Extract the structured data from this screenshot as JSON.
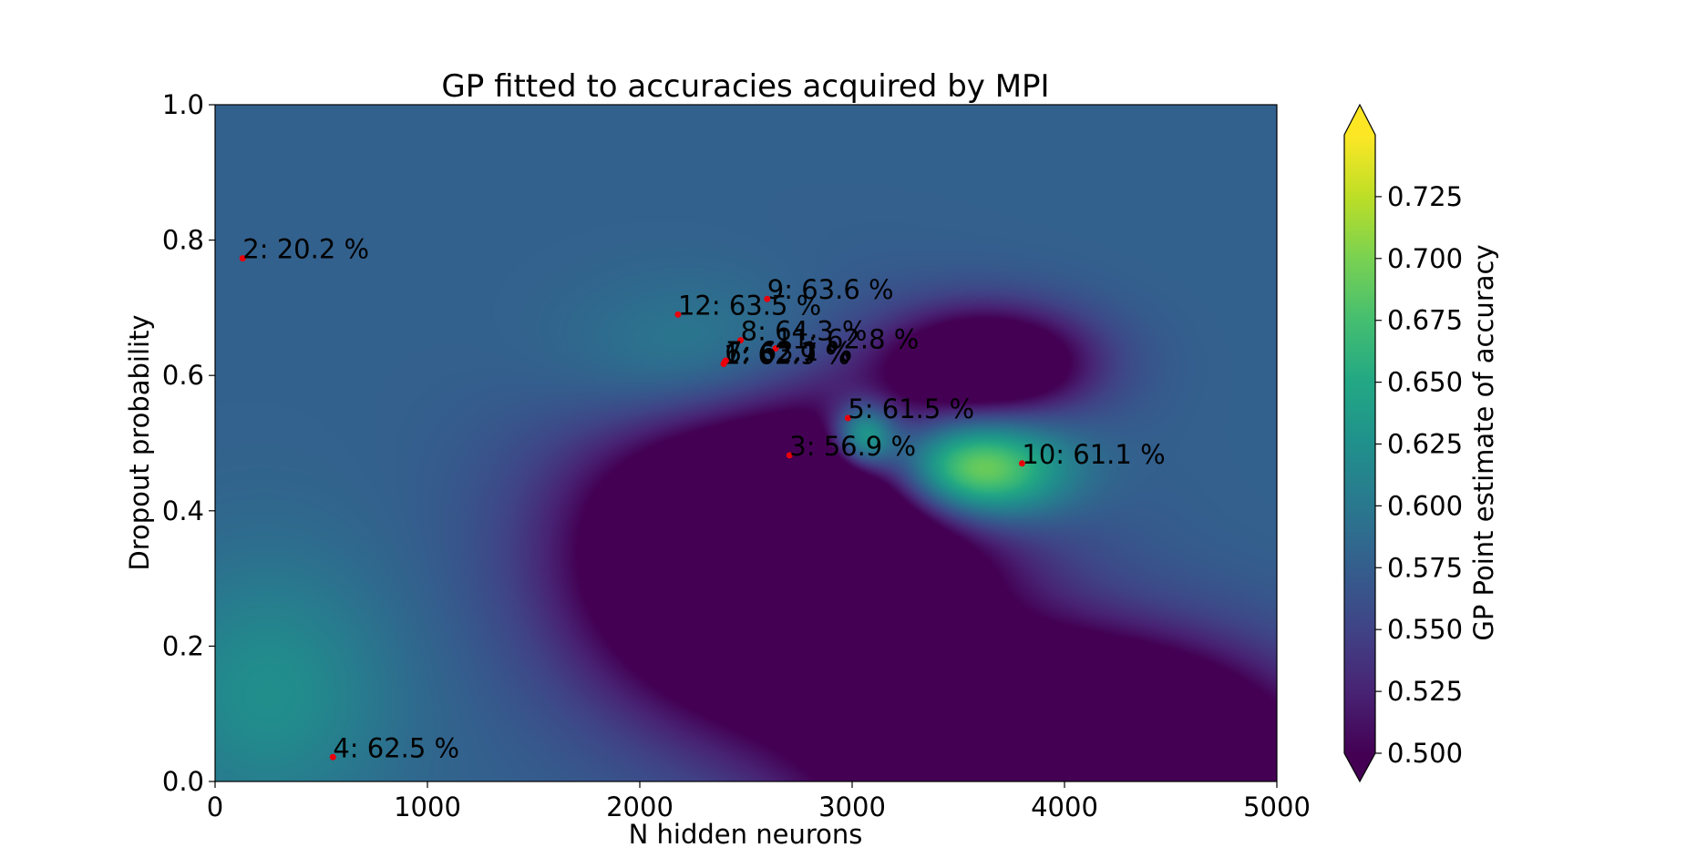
{
  "chart_data": {
    "type": "heatmap",
    "title": "GP fitted to accuracies acquired by MPI",
    "xlabel": "N hidden neurons",
    "ylabel": "Dropout probability",
    "xlim": [
      0,
      5000
    ],
    "ylim": [
      0.0,
      1.0
    ],
    "x_ticks": [
      0,
      1000,
      2000,
      3000,
      4000,
      5000
    ],
    "x_tick_labels": [
      "0",
      "1000",
      "2000",
      "3000",
      "4000",
      "5000"
    ],
    "y_ticks": [
      0.0,
      0.2,
      0.4,
      0.6,
      0.8,
      1.0
    ],
    "y_tick_labels": [
      "0.0",
      "0.2",
      "0.4",
      "0.6",
      "0.8",
      "1.0"
    ],
    "colormap": "viridis",
    "colorbar": {
      "label": "GP Point estimate of accuracy",
      "min": 0.5,
      "max": 0.75,
      "extend": "both",
      "ticks": [
        0.5,
        0.525,
        0.55,
        0.575,
        0.6,
        0.625,
        0.65,
        0.675,
        0.7,
        0.725
      ],
      "tick_labels": [
        "0.500",
        "0.525",
        "0.550",
        "0.575",
        "0.600",
        "0.625",
        "0.650",
        "0.675",
        "0.700",
        "0.725"
      ]
    },
    "surface": {
      "baseline": 0.578,
      "components": [
        {
          "cx": 2350,
          "cy": 0.6,
          "sx": 450,
          "sy": 0.09,
          "amp": 0.06
        },
        {
          "cx": 3550,
          "cy": 0.46,
          "sx": 300,
          "sy": 0.055,
          "amp": 0.185
        },
        {
          "cx": 3050,
          "cy": 0.51,
          "sx": 110,
          "sy": 0.035,
          "amp": 0.14
        },
        {
          "cx": 2680,
          "cy": 0.34,
          "sx": 620,
          "sy": 0.16,
          "amp": -0.27
        },
        {
          "cx": 3650,
          "cy": 0.62,
          "sx": 330,
          "sy": 0.055,
          "amp": -0.14
        },
        {
          "cx": 4050,
          "cy": 0.03,
          "sx": 650,
          "sy": 0.11,
          "amp": -0.3
        },
        {
          "cx": 250,
          "cy": 0.13,
          "sx": 420,
          "sy": 0.14,
          "amp": 0.045
        }
      ]
    },
    "points": [
      {
        "label": "2: 20.2 %",
        "x": 130,
        "y": 0.773
      },
      {
        "label": "4: 62.5 %",
        "x": 555,
        "y": 0.036
      },
      {
        "label": "12: 63.5 %",
        "x": 2180,
        "y": 0.69
      },
      {
        "label": "9: 63.6 %",
        "x": 2600,
        "y": 0.713
      },
      {
        "label": "8: 64.3 %",
        "x": 2475,
        "y": 0.652
      },
      {
        "label": "11: 62.8 %",
        "x": 2640,
        "y": 0.64
      },
      {
        "label": "6: 62.7 %",
        "x": 2400,
        "y": 0.62
      },
      {
        "label": "1: 62.9 %",
        "x": 2395,
        "y": 0.617
      },
      {
        "label": "7: 63.1 %",
        "x": 2405,
        "y": 0.622
      },
      {
        "label": "5: 61.5 %",
        "x": 2980,
        "y": 0.537
      },
      {
        "label": "3: 56.9 %",
        "x": 2705,
        "y": 0.482
      },
      {
        "label": "10: 61.1 %",
        "x": 3800,
        "y": 0.47
      }
    ],
    "grid": false,
    "marker_color": "#e8000b"
  }
}
